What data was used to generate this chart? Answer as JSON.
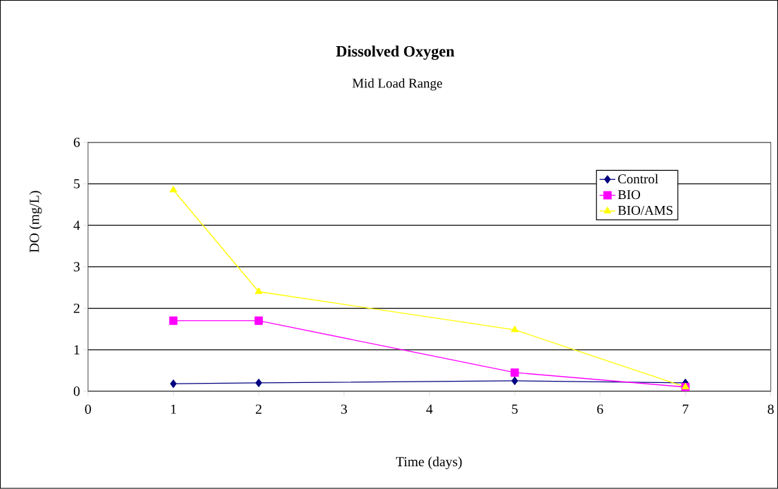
{
  "chart_data": {
    "type": "line",
    "title": "Dissolved Oxygen",
    "subtitle": "Mid Load Range",
    "xlabel": "Time (days)",
    "ylabel": "DO (mg/L)",
    "xlim": [
      0,
      8
    ],
    "xticks": [
      0,
      1,
      2,
      3,
      4,
      5,
      6,
      7,
      8
    ],
    "ylim": [
      0,
      6
    ],
    "yticks": [
      0,
      1,
      2,
      3,
      4,
      5,
      6
    ],
    "grid": "y",
    "legend": "top right",
    "line_style": "solid",
    "series": [
      {
        "name": "Control",
        "color": "#000080",
        "marker": "diamond",
        "x": [
          1,
          2,
          5,
          7
        ],
        "values": [
          0.18,
          0.2,
          0.25,
          0.2
        ]
      },
      {
        "name": "BIO",
        "color": "#ff00ff",
        "marker": "square",
        "x": [
          1,
          2,
          5,
          7
        ],
        "values": [
          1.7,
          1.7,
          0.45,
          0.1
        ]
      },
      {
        "name": "BIO/AMS",
        "color": "#ffff00",
        "marker": "triangle",
        "x": [
          1,
          2,
          5,
          7
        ],
        "values": [
          4.85,
          2.4,
          1.48,
          0.1
        ]
      }
    ]
  }
}
